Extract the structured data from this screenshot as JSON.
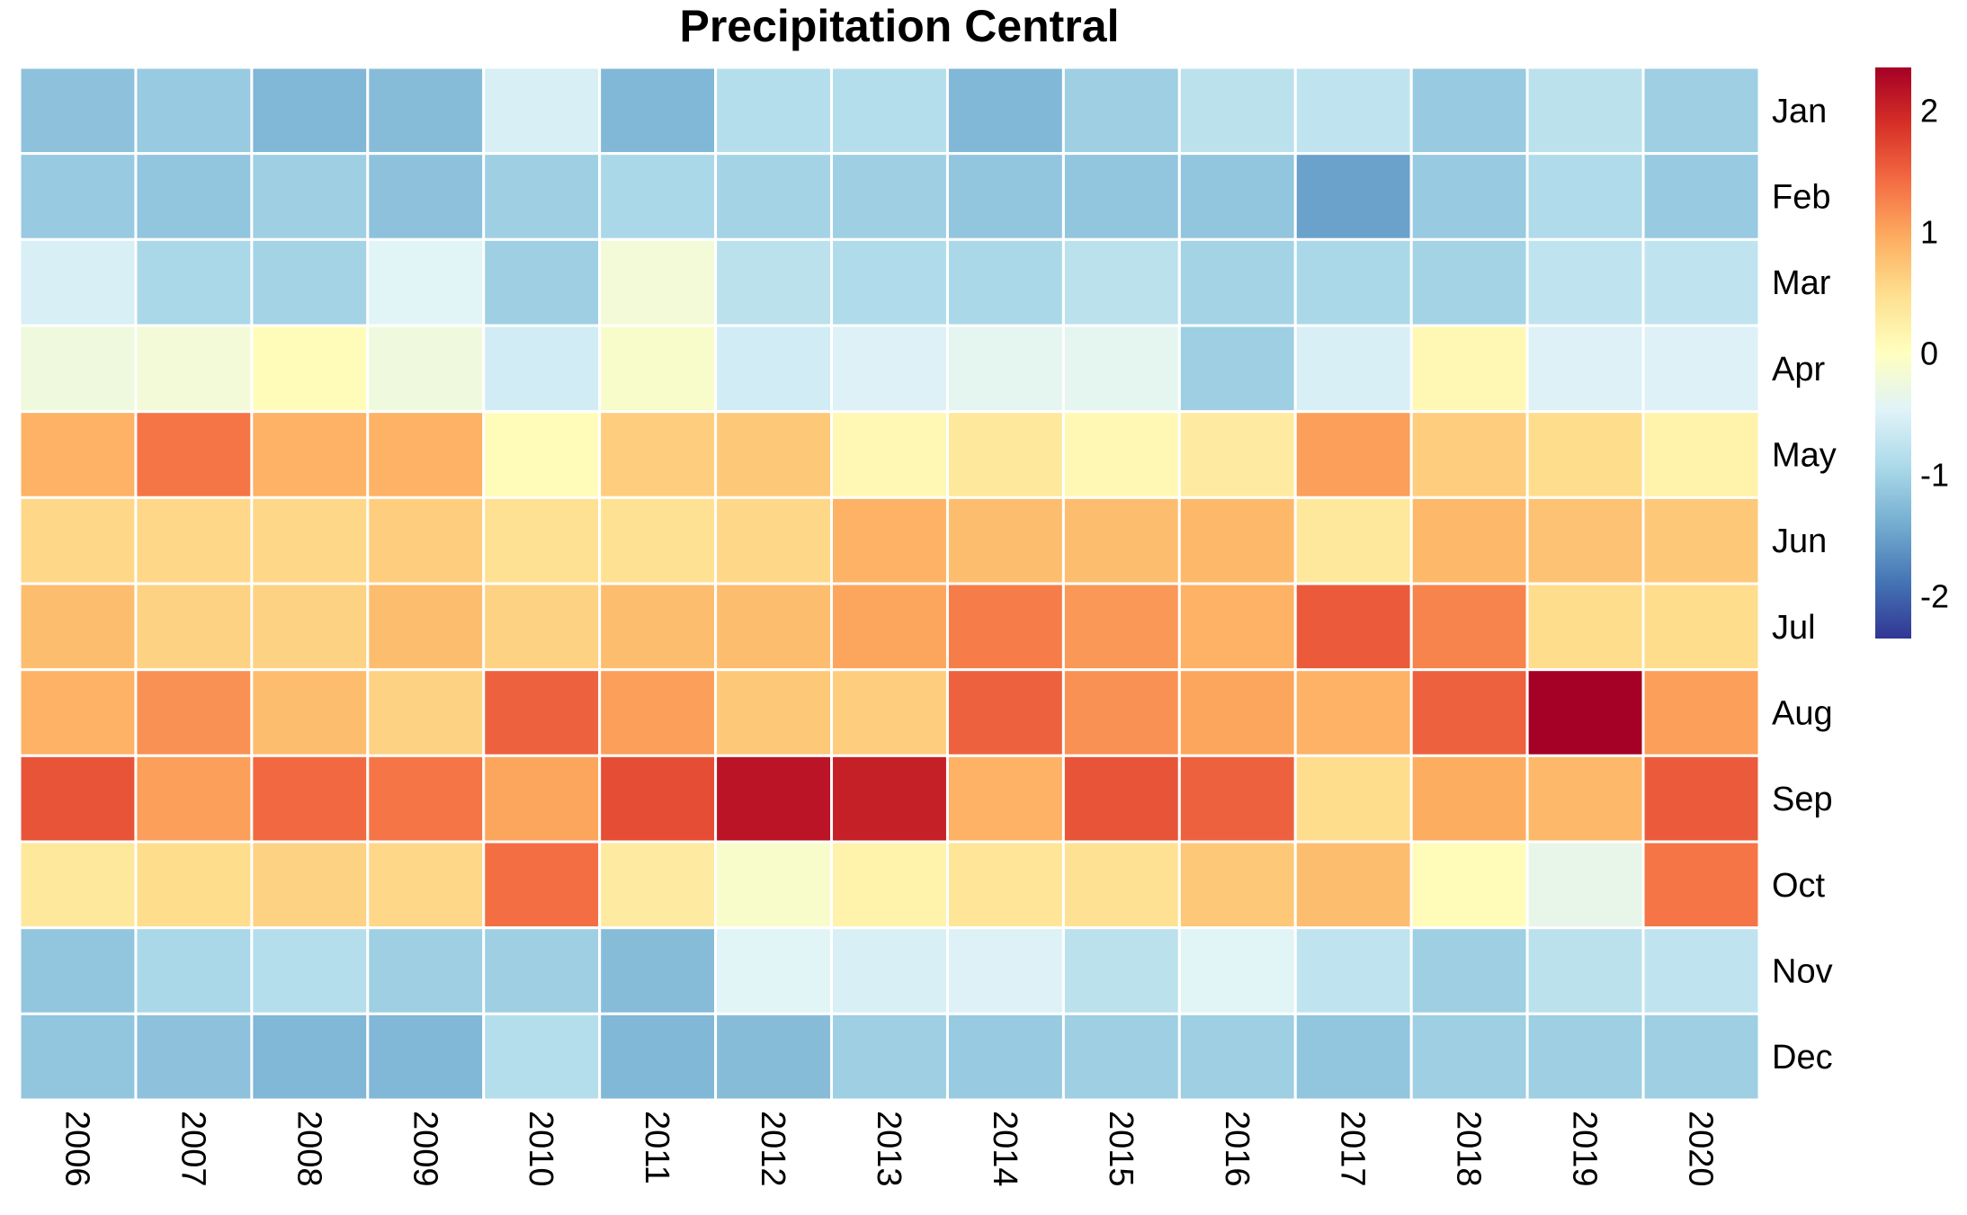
{
  "chart_data": {
    "type": "heatmap",
    "title": "Precipitation Central",
    "rows": [
      "Jan",
      "Feb",
      "Mar",
      "Apr",
      "May",
      "Jun",
      "Jul",
      "Aug",
      "Sep",
      "Oct",
      "Nov",
      "Dec"
    ],
    "columns": [
      "2006",
      "2007",
      "2008",
      "2009",
      "2010",
      "2011",
      "2012",
      "2013",
      "2014",
      "2015",
      "2016",
      "2017",
      "2018",
      "2019",
      "2020"
    ],
    "values": [
      [
        -1.2,
        -1.1,
        -1.3,
        -1.25,
        -0.55,
        -1.3,
        -0.85,
        -0.85,
        -1.3,
        -1.05,
        -0.8,
        -0.75,
        -1.1,
        -0.8,
        -1.05
      ],
      [
        -1.1,
        -1.15,
        -1.05,
        -1.2,
        -1.05,
        -0.95,
        -1.0,
        -1.05,
        -1.15,
        -1.15,
        -1.15,
        -1.5,
        -1.1,
        -0.9,
        -1.1
      ],
      [
        -0.55,
        -0.95,
        -1.0,
        -0.45,
        -1.05,
        -0.2,
        -0.8,
        -0.9,
        -0.95,
        -0.8,
        -1.0,
        -0.95,
        -1.0,
        -0.75,
        -0.75
      ],
      [
        -0.25,
        -0.2,
        0.05,
        -0.25,
        -0.6,
        -0.1,
        -0.6,
        -0.5,
        -0.4,
        -0.4,
        -1.05,
        -0.55,
        0.1,
        -0.5,
        -0.5
      ],
      [
        0.9,
        1.35,
        0.9,
        0.9,
        0.05,
        0.65,
        0.7,
        0.1,
        0.35,
        0.1,
        0.3,
        1.05,
        0.65,
        0.5,
        0.2
      ],
      [
        0.55,
        0.55,
        0.55,
        0.65,
        0.45,
        0.45,
        0.55,
        0.9,
        0.8,
        0.8,
        0.85,
        0.35,
        0.85,
        0.75,
        0.7
      ],
      [
        0.8,
        0.6,
        0.6,
        0.8,
        0.6,
        0.8,
        0.8,
        1.0,
        1.3,
        1.1,
        0.9,
        1.55,
        1.25,
        0.5,
        0.5
      ],
      [
        0.9,
        1.15,
        0.8,
        0.6,
        1.5,
        1.05,
        0.7,
        0.65,
        1.5,
        1.15,
        1.0,
        0.9,
        1.5,
        2.35,
        1.05
      ],
      [
        1.6,
        1.05,
        1.45,
        1.35,
        1.0,
        1.65,
        2.15,
        2.05,
        0.9,
        1.6,
        1.5,
        0.5,
        0.95,
        0.85,
        1.55
      ],
      [
        0.35,
        0.5,
        0.6,
        0.55,
        1.4,
        0.3,
        -0.1,
        0.2,
        0.4,
        0.45,
        0.7,
        0.8,
        0.05,
        -0.35,
        1.35
      ],
      [
        -1.15,
        -0.95,
        -0.85,
        -1.05,
        -1.05,
        -1.25,
        -0.45,
        -0.55,
        -0.5,
        -0.8,
        -0.45,
        -0.75,
        -1.05,
        -0.8,
        -0.75
      ],
      [
        -1.15,
        -1.2,
        -1.3,
        -1.3,
        -0.85,
        -1.3,
        -1.25,
        -1.05,
        -1.1,
        -1.05,
        -1.05,
        -1.15,
        -1.05,
        -1.05,
        -1.05
      ]
    ],
    "color_scale": {
      "min": -2.35,
      "max": 2.35,
      "ticks": [
        -2,
        -1,
        0,
        1,
        2
      ],
      "palette": [
        "#313695",
        "#4575b4",
        "#74add1",
        "#abd9e9",
        "#e0f3f8",
        "#ffffbf",
        "#fee090",
        "#fdae61",
        "#f46d43",
        "#d73027",
        "#a50026"
      ],
      "low_color": "#3a63ad",
      "high_color": "#d22a26"
    },
    "legend_placement": "right",
    "cell_border_color": "#ffffff"
  }
}
